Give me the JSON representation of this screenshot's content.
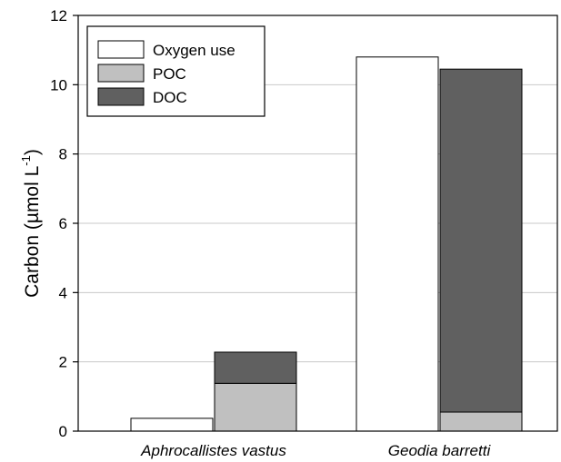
{
  "chart_data": {
    "type": "bar",
    "title": "",
    "ylabel": "Carbon (µmol L",
    "ylabel_sup": "-1",
    "ylabel_close": ")",
    "xlabel": "",
    "ylim": [
      0,
      12
    ],
    "yticks": [
      0,
      2,
      4,
      6,
      8,
      10,
      12
    ],
    "grid": "horizontal",
    "legend_position": "top-left",
    "categories": [
      "Aphrocallistes vastus",
      "Geodia barretti"
    ],
    "series": [
      {
        "name": "Oxygen use",
        "values": [
          0.37,
          10.8
        ],
        "color": "#ffffff",
        "stack": "oxygen"
      },
      {
        "name": "POC",
        "values": [
          1.38,
          0.55
        ],
        "color": "#c0c0c0",
        "stack": "carbon"
      },
      {
        "name": "DOC",
        "values": [
          0.9,
          9.9
        ],
        "color": "#606060",
        "stack": "carbon"
      }
    ]
  }
}
